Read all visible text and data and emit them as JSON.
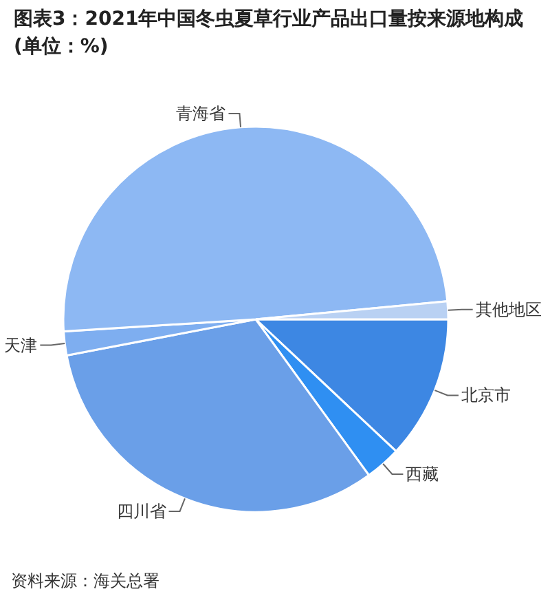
{
  "chart_data": {
    "type": "pie",
    "title": "图表3：2021年中国冬虫夏草行业产品出口量按来源地构成(单位：%)",
    "categories": [
      "北京市",
      "西藏",
      "四川省",
      "天津",
      "青海省",
      "其他地区"
    ],
    "values": [
      12,
      3,
      32,
      2,
      49.5,
      1.5
    ],
    "colors": [
      "#3d87e3",
      "#2f8ff2",
      "#6a9fe8",
      "#7eaef0",
      "#8db8f3",
      "#b9d1f3"
    ],
    "annotations": [
      "资料来源：海关总署"
    ]
  }
}
